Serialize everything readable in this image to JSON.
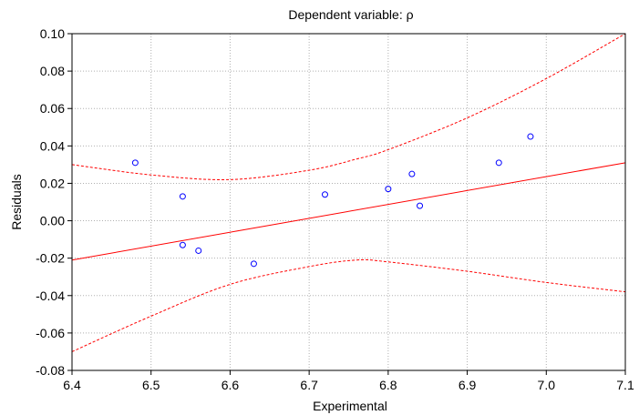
{
  "chart_data": {
    "type": "scatter",
    "title": "Dependent variable: ρ",
    "xlabel": "Experimental",
    "ylabel": "Residuals",
    "xlim": [
      6.4,
      7.1
    ],
    "ylim": [
      -0.08,
      0.1
    ],
    "grid": true,
    "x_ticks": [
      "6.4",
      "6.5",
      "6.6",
      "6.7",
      "6.8",
      "6.9",
      "7.0",
      "7.1"
    ],
    "y_ticks": [
      "-0.08",
      "-0.06",
      "-0.04",
      "-0.02",
      "0.00",
      "0.02",
      "0.04",
      "0.06",
      "0.08",
      "0.10"
    ],
    "points": {
      "x": [
        6.48,
        6.54,
        6.54,
        6.56,
        6.63,
        6.72,
        6.8,
        6.83,
        6.84,
        6.94,
        6.98
      ],
      "y": [
        0.031,
        0.013,
        -0.013,
        -0.016,
        -0.023,
        0.014,
        0.017,
        0.025,
        0.008,
        0.031,
        0.045
      ]
    },
    "fit_line": {
      "x": [
        6.4,
        7.1
      ],
      "y": [
        -0.021,
        0.031
      ]
    },
    "confidence_band": {
      "x": [
        6.4,
        6.5,
        6.6,
        6.7,
        6.76,
        6.8,
        6.9,
        7.0,
        7.1
      ],
      "upper": [
        0.03,
        0.0245,
        0.022,
        0.027,
        0.033,
        0.038,
        0.055,
        0.076,
        0.1
      ],
      "lower": [
        -0.07,
        -0.051,
        -0.034,
        -0.0245,
        -0.021,
        -0.022,
        -0.027,
        -0.033,
        -0.038
      ]
    },
    "colors": {
      "points": "#0000ff",
      "fit_line": "#ff0000",
      "confidence_band": "#ff0000",
      "grid": "#b0b0b0",
      "axes": "#000000"
    }
  }
}
